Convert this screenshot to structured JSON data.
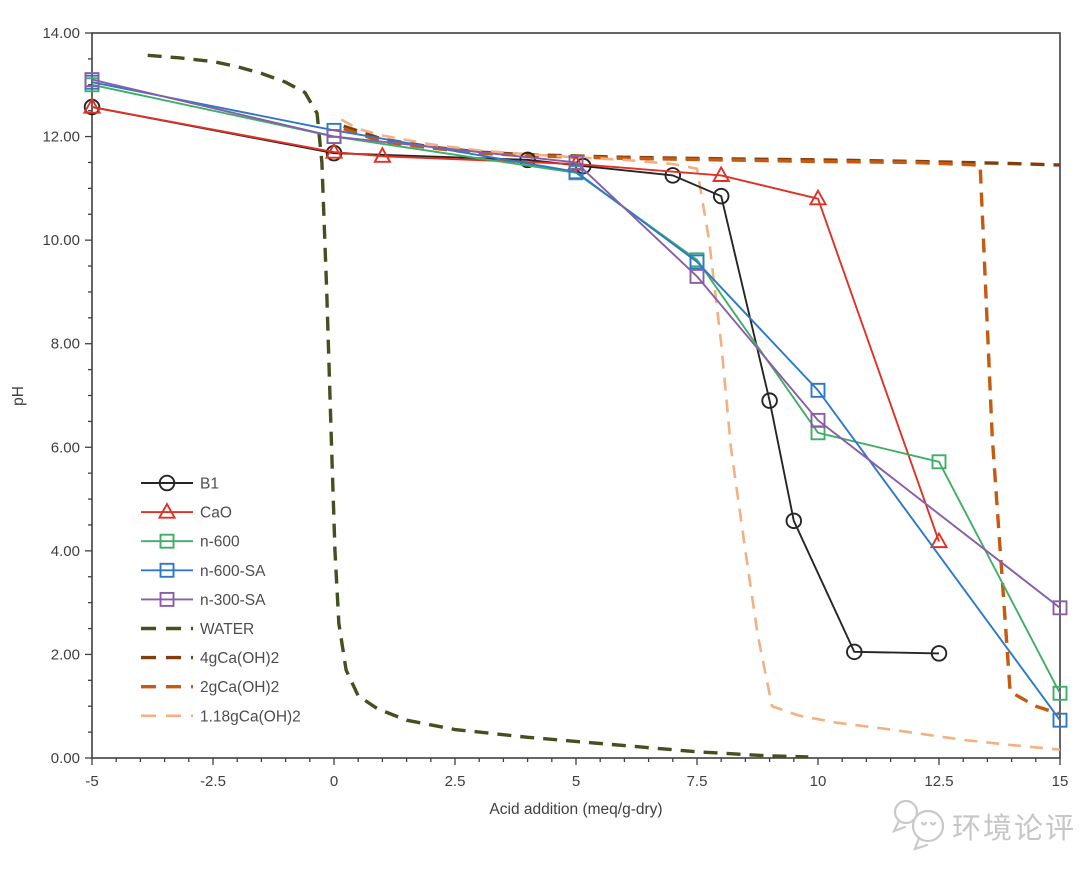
{
  "watermark": {
    "text": "环境论评",
    "icon": "chat-bubbles"
  },
  "chart_data": {
    "type": "line",
    "title": "",
    "xlabel": "Acid addition (meq/g-dry)",
    "ylabel": "pH",
    "xlim": [
      -5,
      15
    ],
    "ylim": [
      0,
      14
    ],
    "grid": false,
    "legend_position": "inside-left",
    "x_major_ticks": [
      -5,
      -2.5,
      0,
      2.5,
      5,
      7.5,
      10,
      12.5,
      15
    ],
    "x_tick_labels": [
      "-5",
      "-2.5",
      "0",
      "2.5",
      "5",
      "7.5",
      "10",
      "12.5",
      "15"
    ],
    "y_major_ticks": [
      0,
      2,
      4,
      6,
      8,
      10,
      12,
      14
    ],
    "y_tick_labels": [
      "0.00",
      "2.00",
      "4.00",
      "6.00",
      "8.00",
      "10.00",
      "12.00",
      "14.00"
    ],
    "minor_tick_step": 0.5,
    "frame_color": "#404040",
    "series": [
      {
        "name": "B1",
        "color": "#262626",
        "marker": "circle",
        "line": "solid",
        "points": [
          [
            -5,
            12.57
          ],
          [
            0,
            11.68
          ],
          [
            4,
            11.55
          ],
          [
            5.15,
            11.43
          ],
          [
            7,
            11.25
          ],
          [
            8,
            10.85
          ],
          [
            9,
            6.9
          ],
          [
            9.5,
            4.58
          ],
          [
            10.75,
            2.05
          ],
          [
            12.5,
            2.02
          ]
        ]
      },
      {
        "name": "CaO",
        "color": "#df3226",
        "marker": "triangle",
        "line": "solid",
        "points": [
          [
            -5,
            12.57
          ],
          [
            0,
            11.7
          ],
          [
            1,
            11.62
          ],
          [
            5,
            11.47
          ],
          [
            8,
            11.25
          ],
          [
            10,
            10.8
          ],
          [
            12.5,
            4.18
          ]
        ]
      },
      {
        "name": "n-600",
        "color": "#41ae67",
        "marker": "square",
        "line": "solid",
        "points": [
          [
            -5,
            13.0
          ],
          [
            0,
            12.0
          ],
          [
            5,
            11.3
          ],
          [
            7.5,
            9.62
          ],
          [
            10,
            6.28
          ],
          [
            12.5,
            5.72
          ],
          [
            15,
            1.25
          ]
        ]
      },
      {
        "name": "n-600-SA",
        "color": "#2e79c7",
        "marker": "square",
        "line": "solid",
        "points": [
          [
            -5,
            13.05
          ],
          [
            0,
            12.12
          ],
          [
            5,
            11.32
          ],
          [
            7.5,
            9.58
          ],
          [
            10,
            7.1
          ],
          [
            15,
            0.73
          ]
        ]
      },
      {
        "name": "n-300-SA",
        "color": "#8a5da8",
        "marker": "square",
        "line": "solid",
        "points": [
          [
            -5,
            13.1
          ],
          [
            0,
            12.0
          ],
          [
            5,
            11.5
          ],
          [
            7.5,
            9.3
          ],
          [
            10,
            6.52
          ],
          [
            15,
            2.9
          ]
        ]
      },
      {
        "name": "WATER",
        "color": "#44501f",
        "marker": "none",
        "line": "dashed",
        "points": [
          [
            -3.85,
            13.57
          ],
          [
            -3.2,
            13.52
          ],
          [
            -2.5,
            13.45
          ],
          [
            -2,
            13.35
          ],
          [
            -1.5,
            13.22
          ],
          [
            -1,
            13.05
          ],
          [
            -0.6,
            12.85
          ],
          [
            -0.35,
            12.45
          ],
          [
            -0.25,
            11.5
          ],
          [
            -0.15,
            9.0
          ],
          [
            -0.05,
            6.0
          ],
          [
            0.02,
            4.0
          ],
          [
            0.1,
            2.6
          ],
          [
            0.25,
            1.7
          ],
          [
            0.5,
            1.2
          ],
          [
            0.9,
            0.95
          ],
          [
            1.5,
            0.73
          ],
          [
            2.5,
            0.55
          ],
          [
            4,
            0.4
          ],
          [
            5.5,
            0.28
          ],
          [
            7.5,
            0.12
          ],
          [
            9,
            0.04
          ],
          [
            9.8,
            0.02
          ]
        ]
      },
      {
        "name": "4gCa(OH)2",
        "color": "#813d0b",
        "marker": "none",
        "line": "dashed",
        "points": [
          [
            0.2,
            12.2
          ],
          [
            1,
            11.95
          ],
          [
            2,
            11.8
          ],
          [
            3,
            11.7
          ],
          [
            4,
            11.65
          ],
          [
            6,
            11.6
          ],
          [
            8,
            11.57
          ],
          [
            10,
            11.55
          ],
          [
            12,
            11.52
          ],
          [
            14,
            11.48
          ],
          [
            15,
            11.45
          ]
        ]
      },
      {
        "name": "2gCa(OH)2",
        "color": "#c55a11",
        "marker": "none",
        "line": "dashed",
        "points": [
          [
            0.2,
            12.15
          ],
          [
            1,
            11.9
          ],
          [
            2,
            11.78
          ],
          [
            3,
            11.68
          ],
          [
            4,
            11.63
          ],
          [
            6,
            11.58
          ],
          [
            8,
            11.55
          ],
          [
            10,
            11.52
          ],
          [
            12,
            11.5
          ],
          [
            13.35,
            11.45
          ],
          [
            13.6,
            6.2
          ],
          [
            13.97,
            1.28
          ],
          [
            14.5,
            1.0
          ],
          [
            15,
            0.85
          ]
        ]
      },
      {
        "name": "1.18gCa(OH)2",
        "color": "#f2b183",
        "marker": "none",
        "line": "dashed-light",
        "points": [
          [
            0.15,
            12.33
          ],
          [
            0.5,
            12.15
          ],
          [
            1,
            12.02
          ],
          [
            2,
            11.85
          ],
          [
            3,
            11.73
          ],
          [
            4,
            11.66
          ],
          [
            5,
            11.6
          ],
          [
            6,
            11.55
          ],
          [
            7,
            11.47
          ],
          [
            7.5,
            11.38
          ],
          [
            7.75,
            10.0
          ],
          [
            8.0,
            8.0
          ],
          [
            8.2,
            6.0
          ],
          [
            8.5,
            4.0
          ],
          [
            8.75,
            2.4
          ],
          [
            9.05,
            1.0
          ],
          [
            9.6,
            0.82
          ],
          [
            10.4,
            0.68
          ],
          [
            11.5,
            0.55
          ],
          [
            13,
            0.35
          ],
          [
            14,
            0.25
          ],
          [
            15,
            0.16
          ]
        ]
      }
    ]
  }
}
